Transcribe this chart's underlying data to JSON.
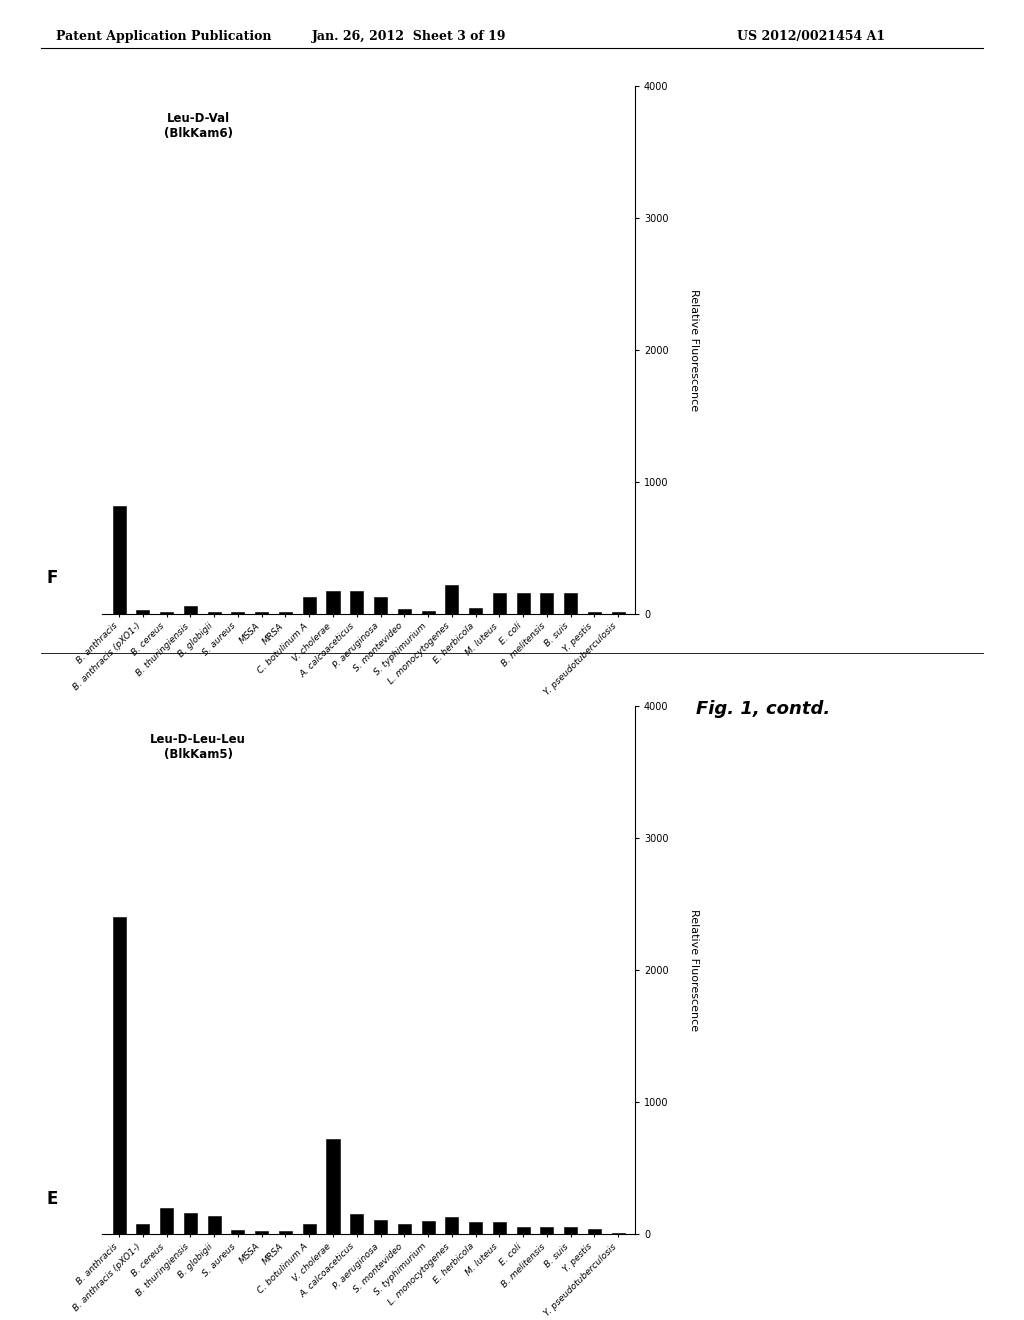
{
  "panel_F": {
    "label": "F",
    "title_line1": "Leu-D-Val",
    "title_line2": "(BlkKam6)",
    "categories": [
      "B. anthracis",
      "B. anthracis (pXO1-)",
      "B. cereus",
      "B. thuringiensis",
      "B. globigii",
      "S. aureus",
      "MSSA",
      "MRSA",
      "C. botulinum A",
      "V. cholerae",
      "A. calcoaceticus",
      "P. aeruginosa",
      "S. montevideo",
      "S. typhimurium",
      "L. monocytogenes",
      "E. herbicola",
      "M. luteus",
      "E. coli",
      "B. melitensis",
      "B. suis",
      "Y. pestis",
      "Y. pseudotuberculosis"
    ],
    "values": [
      820,
      30,
      10,
      60,
      10,
      10,
      10,
      10,
      130,
      170,
      175,
      130,
      40,
      20,
      215,
      45,
      155,
      155,
      155,
      155,
      10,
      10
    ]
  },
  "panel_E": {
    "label": "E",
    "title_line1": "Leu-D-Leu-Leu",
    "title_line2": "(BlkKam5)",
    "categories": [
      "B. anthracis",
      "B. anthracis (pXO1-)",
      "B. cereus",
      "B. thuringiensis",
      "B. globigii",
      "S. aureus",
      "MSSA",
      "MRSA",
      "C. botulinum A",
      "V. cholerae",
      "A. calcoaceticus",
      "P. aeruginosa",
      "S. montevideo",
      "S. typhimurium",
      "L. monocytogenes",
      "E. herbicola",
      "M. luteus",
      "E. coli",
      "B. melitensis",
      "B. suis",
      "Y. pestis",
      "Y. pseudotuberculosis"
    ],
    "values": [
      2400,
      80,
      200,
      160,
      140,
      30,
      25,
      25,
      80,
      720,
      155,
      110,
      80,
      100,
      130,
      90,
      90,
      55,
      55,
      55,
      40,
      10
    ]
  },
  "ylabel": "Relative Fluorescence",
  "ylim": [
    0,
    4000
  ],
  "yticks": [
    0,
    1000,
    2000,
    3000,
    4000
  ],
  "bar_color": "#000000",
  "bg_color": "#ffffff",
  "header_left": "Patent Application Publication",
  "header_center": "Jan. 26, 2012  Sheet 3 of 19",
  "header_right": "US 2012/0021454 A1",
  "fig_caption": "Fig. 1, contd.",
  "font_size_tick_x": 6.5,
  "font_size_tick_y": 7,
  "font_size_ylabel": 8,
  "font_size_title": 8.5,
  "font_size_panel_label": 12,
  "font_size_header": 9,
  "font_size_caption": 13
}
